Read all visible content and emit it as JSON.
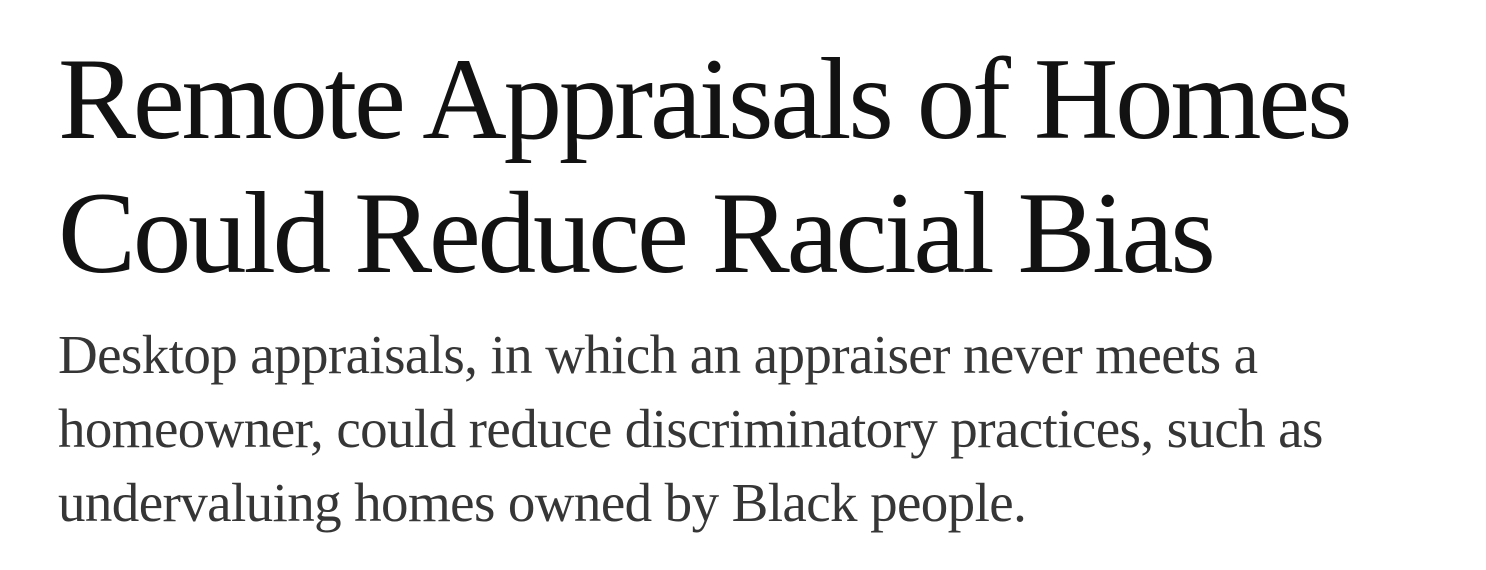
{
  "article": {
    "headline": {
      "lines": [
        "Remote Appraisals of Homes",
        "Could Reduce Racial Bias"
      ]
    },
    "summary": {
      "lines": [
        "Desktop appraisals, in which an appraiser never meets a",
        "homeowner, could reduce discriminatory practices, such as",
        "undervaluing homes owned by Black people."
      ]
    }
  },
  "colors": {
    "headline_text": "#121212",
    "summary_text": "#363636",
    "background": "#ffffff"
  }
}
